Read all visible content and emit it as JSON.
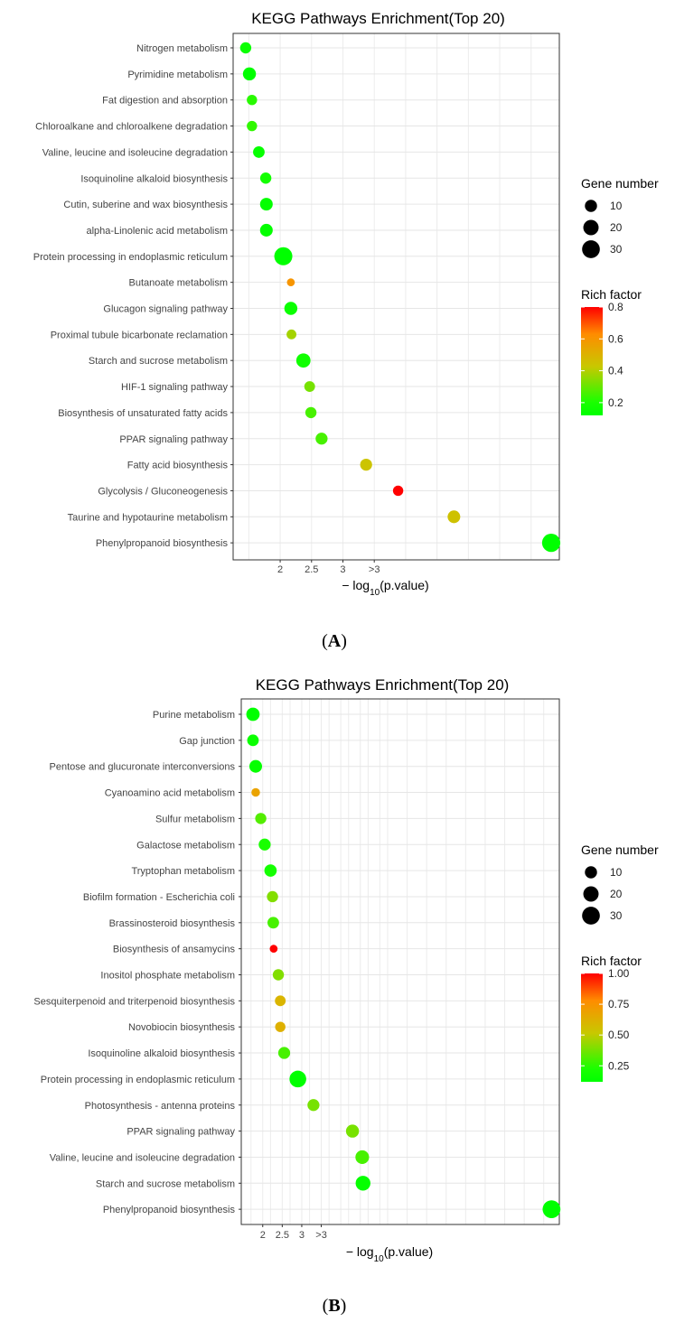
{
  "chart_data": [
    {
      "type": "scatter",
      "panel_label": "A",
      "title": "KEGG Pathways Enrichment(Top 20)",
      "xlabel_prefix": "− log",
      "xlabel_sub": "10",
      "xlabel_suffix": "(p.value)",
      "x_ticks": [
        {
          "label": "2",
          "value": 2.0
        },
        {
          "label": "2.5",
          "value": 2.5
        },
        {
          "label": "3",
          "value": 3.0
        },
        {
          "label": ">3",
          "value": 3.5
        }
      ],
      "xlim": [
        1.25,
        6.45
      ],
      "size_legend_title": "Gene number",
      "size_legend": [
        10,
        20,
        30
      ],
      "color_legend_title": "Rich factor",
      "color_legend_ticks": [
        {
          "label": "0.8",
          "value": 0.8
        },
        {
          "label": "0.6",
          "value": 0.6
        },
        {
          "label": "0.4",
          "value": 0.4
        },
        {
          "label": "0.2",
          "value": 0.2
        }
      ],
      "color_range": [
        0.12,
        0.8
      ],
      "points": [
        {
          "pathway": "Nitrogen metabolism",
          "x": 1.45,
          "rich": 0.15,
          "genes": 8
        },
        {
          "pathway": "Pyrimidine metabolism",
          "x": 1.51,
          "rich": 0.12,
          "genes": 13
        },
        {
          "pathway": "Fat digestion and absorption",
          "x": 1.55,
          "rich": 0.22,
          "genes": 6
        },
        {
          "pathway": "Chloroalkane and chloroalkene degradation",
          "x": 1.55,
          "rich": 0.23,
          "genes": 6
        },
        {
          "pathway": "Valine, leucine and isoleucine degradation",
          "x": 1.66,
          "rich": 0.14,
          "genes": 9
        },
        {
          "pathway": "Isoquinoline alkaloid biosynthesis",
          "x": 1.77,
          "rich": 0.18,
          "genes": 8
        },
        {
          "pathway": "Cutin, suberine and wax biosynthesis",
          "x": 1.78,
          "rich": 0.13,
          "genes": 12
        },
        {
          "pathway": "alpha-Linolenic acid metabolism",
          "x": 1.78,
          "rich": 0.13,
          "genes": 12
        },
        {
          "pathway": "Protein processing in endoplasmic reticulum",
          "x": 2.05,
          "rich": 0.12,
          "genes": 33
        },
        {
          "pathway": "Butanoate metabolism",
          "x": 2.17,
          "rich": 0.6,
          "genes": 2
        },
        {
          "pathway": "Glucagon signaling pathway",
          "x": 2.17,
          "rich": 0.15,
          "genes": 13
        },
        {
          "pathway": "Proximal tubule bicarbonate reclamation",
          "x": 2.18,
          "rich": 0.38,
          "genes": 5
        },
        {
          "pathway": "Starch and sucrose metabolism",
          "x": 2.37,
          "rich": 0.17,
          "genes": 17
        },
        {
          "pathway": "HIF-1 signaling pathway",
          "x": 2.47,
          "rich": 0.32,
          "genes": 7
        },
        {
          "pathway": "Biosynthesis of unsaturated fatty acids",
          "x": 2.49,
          "rich": 0.26,
          "genes": 8
        },
        {
          "pathway": "PPAR signaling pathway",
          "x": 2.66,
          "rich": 0.26,
          "genes": 10
        },
        {
          "pathway": "Fatty acid biosynthesis",
          "x": 3.37,
          "rich": 0.44,
          "genes": 10
        },
        {
          "pathway": "Glycolysis / Gluconeogenesis",
          "x": 3.88,
          "rich": 0.8,
          "genes": 6
        },
        {
          "pathway": "Taurine and hypotaurine metabolism",
          "x": 4.77,
          "rich": 0.45,
          "genes": 12
        },
        {
          "pathway": "Phenylpropanoid biosynthesis",
          "x": 6.32,
          "rich": 0.12,
          "genes": 34
        }
      ]
    },
    {
      "type": "scatter",
      "panel_label": "B",
      "title": "KEGG Pathways Enrichment(Top 20)",
      "xlabel_prefix": "− log",
      "xlabel_sub": "10",
      "xlabel_suffix": "(p.value)",
      "x_ticks": [
        {
          "label": "2",
          "value": 2.0
        },
        {
          "label": "2.5",
          "value": 2.5
        },
        {
          "label": "3",
          "value": 3.0
        },
        {
          "label": ">3",
          "value": 3.5
        }
      ],
      "xlim": [
        1.45,
        9.6
      ],
      "size_legend_title": "Gene number",
      "size_legend": [
        10,
        20,
        30
      ],
      "color_legend_title": "Rich factor",
      "color_legend_ticks": [
        {
          "label": "1.00",
          "value": 1.0
        },
        {
          "label": "0.75",
          "value": 0.75
        },
        {
          "label": "0.50",
          "value": 0.5
        },
        {
          "label": "0.25",
          "value": 0.25
        }
      ],
      "color_range": [
        0.12,
        1.0
      ],
      "points": [
        {
          "pathway": "Purine metabolism",
          "x": 1.75,
          "rich": 0.12,
          "genes": 14
        },
        {
          "pathway": "Gap junction",
          "x": 1.75,
          "rich": 0.16,
          "genes": 9
        },
        {
          "pathway": "Pentose and glucuronate interconversions",
          "x": 1.82,
          "rich": 0.14,
          "genes": 12
        },
        {
          "pathway": "Cyanoamino acid metabolism",
          "x": 1.82,
          "rich": 0.68,
          "genes": 3
        },
        {
          "pathway": "Sulfur metabolism",
          "x": 1.95,
          "rich": 0.32,
          "genes": 8
        },
        {
          "pathway": "Galactose metabolism",
          "x": 2.05,
          "rich": 0.22,
          "genes": 10
        },
        {
          "pathway": "Tryptophan metabolism",
          "x": 2.2,
          "rich": 0.2,
          "genes": 11
        },
        {
          "pathway": "Biofilm formation - Escherichia coli",
          "x": 2.25,
          "rich": 0.4,
          "genes": 8
        },
        {
          "pathway": "Brassinosteroid biosynthesis",
          "x": 2.27,
          "rich": 0.3,
          "genes": 9
        },
        {
          "pathway": "Biosynthesis of ansamycins",
          "x": 2.28,
          "rich": 1.0,
          "genes": 2
        },
        {
          "pathway": "Inositol phosphate metabolism",
          "x": 2.4,
          "rich": 0.4,
          "genes": 8
        },
        {
          "pathway": "Sesquiterpenoid and triterpenoid biosynthesis",
          "x": 2.45,
          "rich": 0.6,
          "genes": 7
        },
        {
          "pathway": "Novobiocin biosynthesis",
          "x": 2.45,
          "rich": 0.62,
          "genes": 6
        },
        {
          "pathway": "Isoquinoline alkaloid biosynthesis",
          "x": 2.55,
          "rich": 0.3,
          "genes": 10
        },
        {
          "pathway": "Protein processing in endoplasmic reticulum",
          "x": 2.9,
          "rich": 0.12,
          "genes": 27
        },
        {
          "pathway": "Photosynthesis - antenna proteins",
          "x": 3.3,
          "rich": 0.38,
          "genes": 10
        },
        {
          "pathway": "PPAR signaling pathway",
          "x": 4.3,
          "rich": 0.38,
          "genes": 13
        },
        {
          "pathway": "Valine, leucine and isoleucine degradation",
          "x": 4.55,
          "rich": 0.3,
          "genes": 15
        },
        {
          "pathway": "Starch and sucrose metabolism",
          "x": 4.57,
          "rich": 0.14,
          "genes": 19
        },
        {
          "pathway": "Phenylpropanoid biosynthesis",
          "x": 9.4,
          "rich": 0.12,
          "genes": 32
        }
      ]
    }
  ]
}
